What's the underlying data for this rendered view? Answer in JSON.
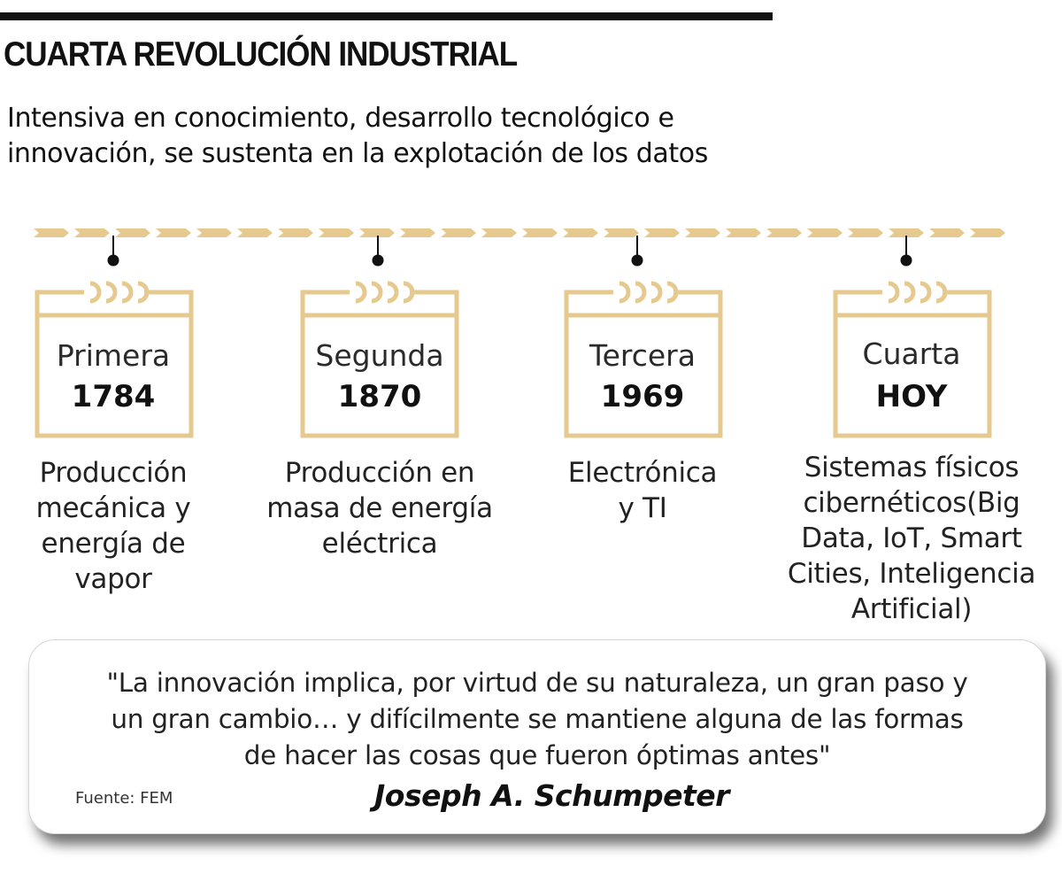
{
  "header": {
    "title": "CUARTA REVOLUCIÓN INDUSTRIAL",
    "subtitle_line1": "Intensiva en conocimiento, desarrollo tecnológico e",
    "subtitle_line2": "innovación, se sustenta en la explotación de los datos"
  },
  "colors": {
    "accent": "#E6C98E",
    "dark": "#111111"
  },
  "stages": [
    {
      "title": "Primera",
      "year": "1784",
      "desc": [
        "Producción",
        "mecánica y",
        "energía de",
        "vapor"
      ]
    },
    {
      "title": "Segunda",
      "year": "1870",
      "desc": [
        "Producción en",
        "masa de energía",
        "eléctrica"
      ]
    },
    {
      "title": "Tercera",
      "year": "1969",
      "desc": [
        "Electrónica",
        "y TI"
      ]
    },
    {
      "title": "Cuarta",
      "year": "HOY",
      "desc": [
        "Sistemas físicos",
        "cibernéticos(Big",
        "Data, IoT, Smart",
        "Cities, Inteligencia",
        "Artificial)"
      ]
    }
  ],
  "quote": {
    "line1": "\"La innovación implica, por virtud de su naturaleza, un gran paso y",
    "line2": "un gran cambio… y difícilmente se mantiene alguna de las formas",
    "line3": "de hacer las cosas que fueron óptimas antes\"",
    "author": "Joseph A. Schumpeter",
    "source": "Fuente: FEM"
  }
}
